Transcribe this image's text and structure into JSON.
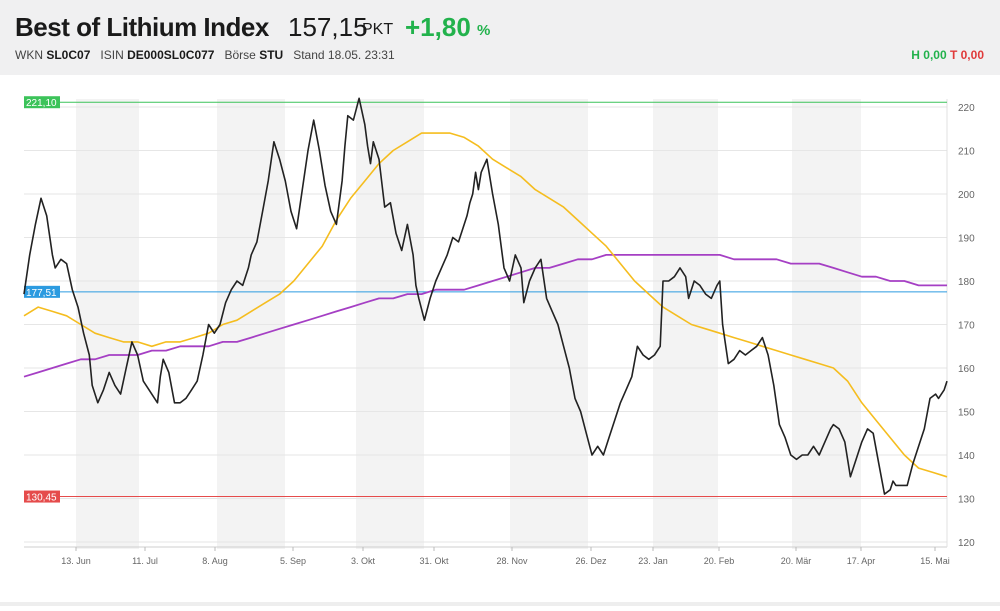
{
  "header": {
    "title": "Best of Lithium Index",
    "price": "157,15",
    "unit": "PKT",
    "change": "+1,80",
    "change_unit": "%",
    "wkn_label": "WKN",
    "wkn": "SL0C07",
    "isin_label": "ISIN",
    "isin": "DE000SL0C077",
    "boerse_label": "Börse",
    "boerse": "STU",
    "stand": "Stand 18.05. 23:31",
    "high": "H 0,00",
    "low": "T 0,00"
  },
  "colors": {
    "price_line": "#222222",
    "ma_short": "#f5bd1f",
    "ma_long": "#a53fc4",
    "high_line": "#3cc35a",
    "mid_line": "#2c9be0",
    "low_line": "#e54b4b",
    "positive": "#22b24c"
  },
  "chart_data": {
    "type": "line",
    "ylim": [
      120,
      220
    ],
    "yticks": [
      120,
      130,
      140,
      150,
      160,
      170,
      180,
      190,
      200,
      210,
      220
    ],
    "x_tick_labels": [
      "13. Jun",
      "11. Jul",
      "8. Aug",
      "5. Sep",
      "3. Okt",
      "31. Okt",
      "28. Nov",
      "26. Dez",
      "23. Jan",
      "20. Feb",
      "20. Mär",
      "17. Apr",
      "15. Mai"
    ],
    "reference_lines": [
      {
        "label": "221,10",
        "value": 221.1,
        "color": "#3cc35a"
      },
      {
        "label": "177,51",
        "value": 177.51,
        "color": "#2c9be0"
      },
      {
        "label": "130,45",
        "value": 130.45,
        "color": "#e54b4b"
      }
    ],
    "weekly_ticks": [
      "13. Jun",
      "11. Jul",
      "8. Aug",
      "5. Sep",
      "3. Okt",
      "31. Okt",
      "28. Nov",
      "26. Dez",
      "23. Jan",
      "20. Feb",
      "20. Mär",
      "17. Apr",
      "15. Mai"
    ],
    "series": [
      {
        "key": "price",
        "values": [
          [
            0,
            177
          ],
          [
            2,
            186
          ],
          [
            4,
            193
          ],
          [
            6,
            199
          ],
          [
            8,
            195
          ],
          [
            10,
            186
          ],
          [
            11,
            183
          ],
          [
            13,
            185
          ],
          [
            15,
            184
          ],
          [
            17,
            178
          ],
          [
            19,
            174
          ],
          [
            21,
            168
          ],
          [
            23,
            163
          ],
          [
            24,
            156
          ],
          [
            26,
            152
          ],
          [
            28,
            155
          ],
          [
            30,
            159
          ],
          [
            32,
            156
          ],
          [
            34,
            154
          ],
          [
            36,
            160
          ],
          [
            38,
            166
          ],
          [
            40,
            163
          ],
          [
            42,
            157
          ],
          [
            44,
            155
          ],
          [
            46,
            153
          ],
          [
            47,
            152
          ],
          [
            48,
            158
          ],
          [
            49,
            162
          ],
          [
            51,
            159
          ],
          [
            53,
            152
          ],
          [
            55,
            152
          ],
          [
            57,
            153
          ],
          [
            59,
            155
          ],
          [
            61,
            157
          ],
          [
            63,
            163
          ],
          [
            65,
            170
          ],
          [
            67,
            168
          ],
          [
            69,
            170
          ],
          [
            71,
            175
          ],
          [
            73,
            178
          ],
          [
            75,
            180
          ],
          [
            77,
            179
          ],
          [
            79,
            183
          ],
          [
            80,
            186
          ],
          [
            82,
            189
          ],
          [
            84,
            196
          ],
          [
            86,
            203
          ],
          [
            88,
            212
          ],
          [
            90,
            208
          ],
          [
            92,
            203
          ],
          [
            94,
            196
          ],
          [
            96,
            192
          ],
          [
            98,
            201
          ],
          [
            100,
            210
          ],
          [
            102,
            217
          ],
          [
            104,
            210
          ],
          [
            106,
            202
          ],
          [
            108,
            196
          ],
          [
            110,
            193
          ],
          [
            112,
            203
          ],
          [
            113,
            211
          ],
          [
            114,
            218
          ],
          [
            116,
            217
          ],
          [
            118,
            222
          ],
          [
            120,
            216
          ],
          [
            121,
            211
          ],
          [
            122,
            207
          ],
          [
            123,
            212
          ],
          [
            125,
            208
          ],
          [
            127,
            197
          ],
          [
            129,
            198
          ],
          [
            131,
            191
          ],
          [
            133,
            187
          ],
          [
            135,
            193
          ],
          [
            137,
            186
          ],
          [
            138,
            179
          ],
          [
            139,
            176
          ],
          [
            141,
            171
          ],
          [
            143,
            176
          ],
          [
            145,
            180
          ],
          [
            147,
            183
          ],
          [
            149,
            186
          ],
          [
            151,
            190
          ],
          [
            153,
            189
          ],
          [
            155,
            193
          ],
          [
            156,
            195
          ],
          [
            157,
            198
          ],
          [
            158,
            200
          ],
          [
            159,
            205
          ],
          [
            160,
            201
          ],
          [
            161,
            205
          ],
          [
            163,
            208
          ],
          [
            165,
            200
          ],
          [
            167,
            193
          ],
          [
            169,
            183
          ],
          [
            171,
            180
          ],
          [
            173,
            186
          ],
          [
            175,
            183
          ],
          [
            176,
            175
          ],
          [
            178,
            180
          ],
          [
            180,
            183
          ],
          [
            182,
            185
          ],
          [
            184,
            176
          ],
          [
            186,
            173
          ],
          [
            188,
            170
          ],
          [
            190,
            165
          ],
          [
            192,
            160
          ],
          [
            194,
            153
          ],
          [
            196,
            150
          ],
          [
            198,
            145
          ],
          [
            200,
            140
          ],
          [
            202,
            142
          ],
          [
            204,
            140
          ],
          [
            206,
            144
          ],
          [
            208,
            148
          ],
          [
            210,
            152
          ],
          [
            212,
            155
          ],
          [
            214,
            158
          ],
          [
            216,
            165
          ],
          [
            218,
            163
          ],
          [
            220,
            162
          ],
          [
            222,
            163
          ],
          [
            224,
            165
          ],
          [
            225,
            180
          ],
          [
            227,
            180
          ],
          [
            229,
            181
          ],
          [
            231,
            183
          ],
          [
            233,
            181
          ],
          [
            234,
            176
          ],
          [
            236,
            180
          ],
          [
            238,
            179
          ],
          [
            240,
            177
          ],
          [
            242,
            176
          ],
          [
            244,
            179
          ],
          [
            245,
            180
          ],
          [
            246,
            170
          ],
          [
            248,
            161
          ],
          [
            250,
            162
          ],
          [
            252,
            164
          ],
          [
            254,
            163
          ],
          [
            256,
            164
          ],
          [
            258,
            165
          ],
          [
            260,
            167
          ],
          [
            262,
            163
          ],
          [
            264,
            156
          ],
          [
            266,
            147
          ],
          [
            268,
            144
          ],
          [
            270,
            140
          ],
          [
            272,
            139
          ],
          [
            274,
            140
          ],
          [
            276,
            140
          ],
          [
            278,
            142
          ],
          [
            280,
            140
          ],
          [
            282,
            143
          ],
          [
            284,
            146
          ],
          [
            285,
            147
          ],
          [
            287,
            146
          ],
          [
            289,
            143
          ],
          [
            291,
            135
          ],
          [
            293,
            139
          ],
          [
            295,
            143
          ],
          [
            297,
            146
          ],
          [
            299,
            145
          ],
          [
            301,
            138
          ],
          [
            303,
            131
          ],
          [
            305,
            132
          ],
          [
            306,
            134
          ],
          [
            307,
            133
          ],
          [
            309,
            133
          ],
          [
            311,
            133
          ],
          [
            313,
            138
          ],
          [
            315,
            142
          ],
          [
            317,
            146
          ],
          [
            319,
            153
          ],
          [
            321,
            154
          ],
          [
            322,
            153
          ],
          [
            324,
            155
          ],
          [
            325,
            157
          ]
        ]
      },
      {
        "key": "ma_short",
        "values": [
          [
            0,
            172
          ],
          [
            5,
            174
          ],
          [
            10,
            173
          ],
          [
            15,
            172
          ],
          [
            20,
            170
          ],
          [
            25,
            168
          ],
          [
            30,
            167
          ],
          [
            35,
            166
          ],
          [
            40,
            166
          ],
          [
            45,
            165
          ],
          [
            50,
            166
          ],
          [
            55,
            166
          ],
          [
            60,
            167
          ],
          [
            65,
            168
          ],
          [
            70,
            170
          ],
          [
            75,
            171
          ],
          [
            80,
            173
          ],
          [
            85,
            175
          ],
          [
            90,
            177
          ],
          [
            95,
            180
          ],
          [
            100,
            184
          ],
          [
            105,
            188
          ],
          [
            110,
            194
          ],
          [
            115,
            199
          ],
          [
            120,
            203
          ],
          [
            125,
            207
          ],
          [
            130,
            210
          ],
          [
            135,
            212
          ],
          [
            140,
            214
          ],
          [
            145,
            214
          ],
          [
            150,
            214
          ],
          [
            155,
            213
          ],
          [
            160,
            211
          ],
          [
            165,
            208
          ],
          [
            170,
            206
          ],
          [
            175,
            204
          ],
          [
            180,
            201
          ],
          [
            185,
            199
          ],
          [
            190,
            197
          ],
          [
            195,
            194
          ],
          [
            200,
            191
          ],
          [
            205,
            188
          ],
          [
            210,
            184
          ],
          [
            215,
            180
          ],
          [
            220,
            177
          ],
          [
            225,
            174
          ],
          [
            230,
            172
          ],
          [
            235,
            170
          ],
          [
            240,
            169
          ],
          [
            245,
            168
          ],
          [
            250,
            167
          ],
          [
            255,
            166
          ],
          [
            260,
            165
          ],
          [
            265,
            164
          ],
          [
            270,
            163
          ],
          [
            275,
            162
          ],
          [
            280,
            161
          ],
          [
            285,
            160
          ],
          [
            290,
            157
          ],
          [
            295,
            152
          ],
          [
            300,
            148
          ],
          [
            305,
            144
          ],
          [
            310,
            140
          ],
          [
            315,
            137
          ],
          [
            320,
            136
          ],
          [
            325,
            135
          ]
        ]
      },
      {
        "key": "ma_long",
        "values": [
          [
            0,
            158
          ],
          [
            5,
            159
          ],
          [
            10,
            160
          ],
          [
            15,
            161
          ],
          [
            20,
            162
          ],
          [
            25,
            162
          ],
          [
            30,
            163
          ],
          [
            35,
            163
          ],
          [
            40,
            163
          ],
          [
            45,
            164
          ],
          [
            50,
            164
          ],
          [
            55,
            165
          ],
          [
            60,
            165
          ],
          [
            65,
            165
          ],
          [
            70,
            166
          ],
          [
            75,
            166
          ],
          [
            80,
            167
          ],
          [
            85,
            168
          ],
          [
            90,
            169
          ],
          [
            95,
            170
          ],
          [
            100,
            171
          ],
          [
            105,
            172
          ],
          [
            110,
            173
          ],
          [
            115,
            174
          ],
          [
            120,
            175
          ],
          [
            125,
            176
          ],
          [
            130,
            176
          ],
          [
            135,
            177
          ],
          [
            140,
            177
          ],
          [
            145,
            178
          ],
          [
            150,
            178
          ],
          [
            155,
            178
          ],
          [
            160,
            179
          ],
          [
            165,
            180
          ],
          [
            170,
            181
          ],
          [
            175,
            182
          ],
          [
            180,
            183
          ],
          [
            185,
            183
          ],
          [
            190,
            184
          ],
          [
            195,
            185
          ],
          [
            200,
            185
          ],
          [
            205,
            186
          ],
          [
            210,
            186
          ],
          [
            215,
            186
          ],
          [
            220,
            186
          ],
          [
            225,
            186
          ],
          [
            230,
            186
          ],
          [
            235,
            186
          ],
          [
            240,
            186
          ],
          [
            245,
            186
          ],
          [
            250,
            185
          ],
          [
            255,
            185
          ],
          [
            260,
            185
          ],
          [
            265,
            185
          ],
          [
            270,
            184
          ],
          [
            275,
            184
          ],
          [
            280,
            184
          ],
          [
            285,
            183
          ],
          [
            290,
            182
          ],
          [
            295,
            181
          ],
          [
            300,
            181
          ],
          [
            305,
            180
          ],
          [
            310,
            180
          ],
          [
            315,
            179
          ],
          [
            320,
            179
          ],
          [
            325,
            179
          ]
        ]
      }
    ]
  }
}
